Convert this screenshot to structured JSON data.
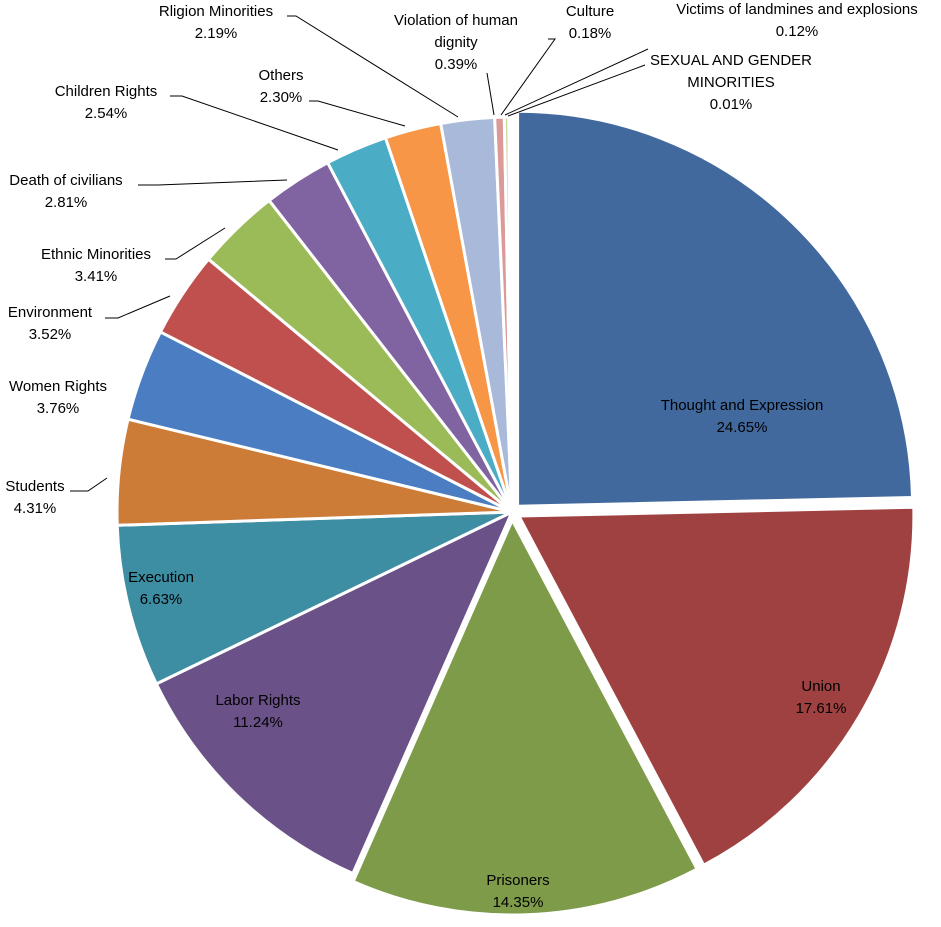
{
  "chart_data": {
    "type": "pie",
    "title": "",
    "series": [
      {
        "values": [
          24.65,
          17.61,
          14.35,
          11.24,
          6.63,
          4.31,
          3.76,
          3.52,
          3.41,
          2.81,
          2.54,
          2.3,
          2.19,
          0.39,
          0.18,
          0.12,
          0.01
        ]
      }
    ],
    "slices": [
      {
        "label": [
          "Thought and Expression"
        ],
        "pct": "24.65%",
        "value": 24.65,
        "color": "#41699E"
      },
      {
        "label": [
          "Union"
        ],
        "pct": "17.61%",
        "value": 17.61,
        "color": "#A04141"
      },
      {
        "label": [
          "Prisoners"
        ],
        "pct": "14.35%",
        "value": 14.35,
        "color": "#7E9B4A"
      },
      {
        "label": [
          "Labor Rights"
        ],
        "pct": "11.24%",
        "value": 11.24,
        "color": "#6A5188"
      },
      {
        "label": [
          "Execution"
        ],
        "pct": "6.63%",
        "value": 6.63,
        "color": "#3D8DA3"
      },
      {
        "label": [
          "Students"
        ],
        "pct": "4.31%",
        "value": 4.31,
        "color": "#CD7C37"
      },
      {
        "label": [
          "Women Rights"
        ],
        "pct": "3.76%",
        "value": 3.76,
        "color": "#4A7DC1"
      },
      {
        "label": [
          "Environment"
        ],
        "pct": "3.52%",
        "value": 3.52,
        "color": "#C0504D"
      },
      {
        "label": [
          "Ethnic Minorities"
        ],
        "pct": "3.41%",
        "value": 3.41,
        "color": "#9BBB59"
      },
      {
        "label": [
          "Death of civilians"
        ],
        "pct": "2.81%",
        "value": 2.81,
        "color": "#8064A2"
      },
      {
        "label": [
          "Children Rights"
        ],
        "pct": "2.54%",
        "value": 2.54,
        "color": "#4BACC6"
      },
      {
        "label": [
          "Others"
        ],
        "pct": "2.30%",
        "value": 2.3,
        "color": "#F79646"
      },
      {
        "label": [
          "Rligion Minorities"
        ],
        "pct": "2.19%",
        "value": 2.19,
        "color": "#A9B9D9"
      },
      {
        "label": [
          "Violation of human",
          "dignity"
        ],
        "pct": "0.39%",
        "value": 0.39,
        "color": "#DB9A98"
      },
      {
        "label": [
          "Culture"
        ],
        "pct": "0.18%",
        "value": 0.18,
        "color": "#C3D69B"
      },
      {
        "label": [
          "Victims of landmines and explosions"
        ],
        "pct": "0.12%",
        "value": 0.12,
        "color": "#B3A2C7"
      },
      {
        "label": [
          "SEXUAL AND GENDER",
          "MINORITIES"
        ],
        "pct": "0.01%",
        "value": 0.01,
        "color": "#93CDDD"
      }
    ],
    "legend": "none",
    "data_labels": "category and percentage"
  }
}
